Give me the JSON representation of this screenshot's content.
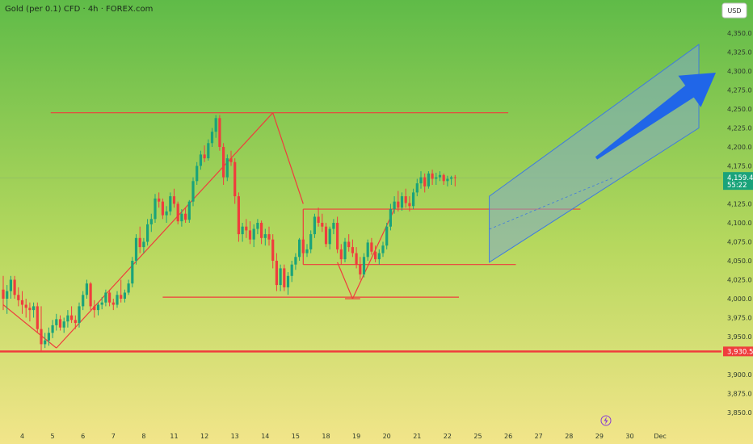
{
  "header": {
    "title": "Gold (per 0.1) CFD · 4h · FOREX.com",
    "currency_button": "USD"
  },
  "colors": {
    "up": "#1aa37a",
    "down": "#ef3d3d",
    "line": "#ef3d3d",
    "channel_fill": "#7fa9c8",
    "channel_edge": "#3e7ae0",
    "arrow": "#2066e8",
    "current_tag": "#1aa37a",
    "support_tag": "#ef3d3d",
    "bg_top": "#5fbb48",
    "bg_bottom": "#f2e58a"
  },
  "icons": {
    "flash": "lightning-icon"
  },
  "chart_data": {
    "type": "candlestick",
    "ylim": [
      3840,
      4370
    ],
    "price_ticks": [
      "4,350.0",
      "4,325.0",
      "4,300.0",
      "4,275.0",
      "4,250.0",
      "4,225.0",
      "4,200.0",
      "4,175.0",
      "4,125.0",
      "4,100.0",
      "4,075.0",
      "4,050.0",
      "4,025.0",
      "4,000.0",
      "3,975.0",
      "3,950.0",
      "3,900.0",
      "3,875.0",
      "3,850.0"
    ],
    "price_tick_values": [
      4350,
      4325,
      4300,
      4275,
      4250,
      4225,
      4200,
      4175,
      4125,
      4100,
      4075,
      4050,
      4025,
      4000,
      3975,
      3950,
      3900,
      3875,
      3850
    ],
    "x_labels": [
      "4",
      "5",
      "6",
      "7",
      "8",
      "11",
      "12",
      "13",
      "14",
      "15",
      "18",
      "19",
      "20",
      "21",
      "22",
      "25",
      "26",
      "27",
      "28",
      "29",
      "30",
      "Dec"
    ],
    "x_label_bars": [
      5,
      13,
      21,
      29,
      37,
      45,
      53,
      61,
      69,
      77,
      85,
      93,
      101,
      109,
      117,
      125,
      133,
      141,
      149,
      157,
      165,
      173
    ],
    "current_price": {
      "value": 4159.4,
      "label": "4,159.4",
      "countdown": "55:22"
    },
    "support_level": {
      "value": 3930.5,
      "label": "3,930.5"
    },
    "candles": [
      [
        4012,
        4030,
        3985,
        4000
      ],
      [
        4000,
        4018,
        3980,
        4010
      ],
      [
        4010,
        4030,
        4000,
        4025
      ],
      [
        4025,
        4030,
        4000,
        4005
      ],
      [
        4005,
        4015,
        3990,
        3998
      ],
      [
        3998,
        4010,
        3980,
        3992
      ],
      [
        3992,
        4000,
        3975,
        3988
      ],
      [
        3988,
        3995,
        3970,
        3985
      ],
      [
        3985,
        3995,
        3975,
        3990
      ],
      [
        3990,
        3995,
        3955,
        3960
      ],
      [
        3960,
        3990,
        3930,
        3940
      ],
      [
        3940,
        3955,
        3935,
        3945
      ],
      [
        3945,
        3962,
        3938,
        3955
      ],
      [
        3955,
        3972,
        3948,
        3965
      ],
      [
        3965,
        3980,
        3958,
        3973
      ],
      [
        3973,
        3978,
        3958,
        3962
      ],
      [
        3962,
        3975,
        3955,
        3970
      ],
      [
        3970,
        3985,
        3962,
        3978
      ],
      [
        3978,
        3990,
        3968,
        3972
      ],
      [
        3972,
        3978,
        3960,
        3968
      ],
      [
        3968,
        3995,
        3962,
        3990
      ],
      [
        3990,
        4010,
        3985,
        4005
      ],
      [
        4005,
        4025,
        4000,
        4020
      ],
      [
        4020,
        4022,
        3985,
        3990
      ],
      [
        3990,
        3998,
        3975,
        3985
      ],
      [
        3985,
        3995,
        3978,
        3992
      ],
      [
        3992,
        4002,
        3986,
        3995
      ],
      [
        3995,
        4012,
        3990,
        4008
      ],
      [
        4008,
        4012,
        3990,
        3995
      ],
      [
        3995,
        4000,
        3985,
        3992
      ],
      [
        3992,
        4010,
        3988,
        4005
      ],
      [
        4005,
        4025,
        3995,
        4000
      ],
      [
        4000,
        4012,
        3995,
        4008
      ],
      [
        4008,
        4025,
        4005,
        4020
      ],
      [
        4020,
        4055,
        4015,
        4050
      ],
      [
        4050,
        4085,
        4045,
        4080
      ],
      [
        4080,
        4095,
        4060,
        4068
      ],
      [
        4068,
        4080,
        4060,
        4075
      ],
      [
        4075,
        4105,
        4070,
        4098
      ],
      [
        4098,
        4112,
        4088,
        4105
      ],
      [
        4105,
        4138,
        4100,
        4132
      ],
      [
        4132,
        4140,
        4120,
        4128
      ],
      [
        4128,
        4132,
        4105,
        4110
      ],
      [
        4110,
        4122,
        4100,
        4115
      ],
      [
        4115,
        4140,
        4110,
        4135
      ],
      [
        4135,
        4145,
        4120,
        4125
      ],
      [
        4125,
        4128,
        4098,
        4102
      ],
      [
        4102,
        4118,
        4095,
        4112
      ],
      [
        4112,
        4120,
        4100,
        4104
      ],
      [
        4104,
        4130,
        4100,
        4128
      ],
      [
        4128,
        4160,
        4122,
        4155
      ],
      [
        4155,
        4180,
        4150,
        4175
      ],
      [
        4175,
        4195,
        4170,
        4190
      ],
      [
        4190,
        4202,
        4180,
        4185
      ],
      [
        4185,
        4210,
        4182,
        4205
      ],
      [
        4205,
        4225,
        4200,
        4220
      ],
      [
        4220,
        4242,
        4212,
        4238
      ],
      [
        4238,
        4242,
        4195,
        4200
      ],
      [
        4200,
        4205,
        4150,
        4160
      ],
      [
        4160,
        4190,
        4155,
        4185
      ],
      [
        4185,
        4195,
        4175,
        4180
      ],
      [
        4180,
        4185,
        4125,
        4135
      ],
      [
        4135,
        4140,
        4075,
        4085
      ],
      [
        4085,
        4100,
        4075,
        4095
      ],
      [
        4095,
        4105,
        4080,
        4090
      ],
      [
        4090,
        4102,
        4072,
        4078
      ],
      [
        4078,
        4098,
        4068,
        4092
      ],
      [
        4092,
        4105,
        4085,
        4100
      ],
      [
        4100,
        4103,
        4072,
        4080
      ],
      [
        4080,
        4092,
        4070,
        4085
      ],
      [
        4085,
        4095,
        4070,
        4078
      ],
      [
        4078,
        4085,
        4040,
        4050
      ],
      [
        4050,
        4060,
        4010,
        4018
      ],
      [
        4018,
        4045,
        4010,
        4040
      ],
      [
        4040,
        4045,
        4010,
        4015
      ],
      [
        4015,
        4035,
        4005,
        4030
      ],
      [
        4030,
        4050,
        4022,
        4045
      ],
      [
        4045,
        4060,
        4038,
        4055
      ],
      [
        4055,
        4080,
        4050,
        4078
      ],
      [
        4078,
        4082,
        4055,
        4060
      ],
      [
        4060,
        4072,
        4055,
        4065
      ],
      [
        4065,
        4090,
        4060,
        4085
      ],
      [
        4085,
        4112,
        4080,
        4108
      ],
      [
        4108,
        4120,
        4095,
        4100
      ],
      [
        4100,
        4112,
        4088,
        4095
      ],
      [
        4095,
        4100,
        4068,
        4072
      ],
      [
        4072,
        4095,
        4065,
        4092
      ],
      [
        4092,
        4105,
        4085,
        4100
      ],
      [
        4100,
        4108,
        4060,
        4065
      ],
      [
        4065,
        4072,
        4045,
        4052
      ],
      [
        4052,
        4080,
        4048,
        4075
      ],
      [
        4075,
        4085,
        4062,
        4068
      ],
      [
        4068,
        4078,
        4055,
        4060
      ],
      [
        4060,
        4068,
        4040,
        4045
      ],
      [
        4045,
        4055,
        4025,
        4032
      ],
      [
        4032,
        4060,
        4028,
        4055
      ],
      [
        4055,
        4078,
        4050,
        4074
      ],
      [
        4074,
        4080,
        4058,
        4062
      ],
      [
        4062,
        4070,
        4048,
        4052
      ],
      [
        4052,
        4065,
        4045,
        4060
      ],
      [
        4060,
        4075,
        4055,
        4070
      ],
      [
        4070,
        4100,
        4065,
        4095
      ],
      [
        4095,
        4125,
        4090,
        4118
      ],
      [
        4118,
        4135,
        4112,
        4128
      ],
      [
        4128,
        4142,
        4115,
        4120
      ],
      [
        4120,
        4140,
        4116,
        4135
      ],
      [
        4135,
        4145,
        4120,
        4126
      ],
      [
        4126,
        4135,
        4115,
        4122
      ],
      [
        4122,
        4145,
        4118,
        4140
      ],
      [
        4140,
        4158,
        4135,
        4152
      ],
      [
        4152,
        4168,
        4145,
        4160
      ],
      [
        4160,
        4165,
        4140,
        4148
      ],
      [
        4148,
        4168,
        4145,
        4165
      ],
      [
        4165,
        4170,
        4150,
        4158
      ],
      [
        4158,
        4166,
        4150,
        4160
      ],
      [
        4160,
        4168,
        4155,
        4163
      ],
      [
        4163,
        4165,
        4150,
        4155
      ],
      [
        4155,
        4162,
        4148,
        4158
      ],
      [
        4158,
        4162,
        4150,
        4160
      ],
      [
        4160,
        4163,
        4148,
        4159.4
      ]
    ]
  }
}
